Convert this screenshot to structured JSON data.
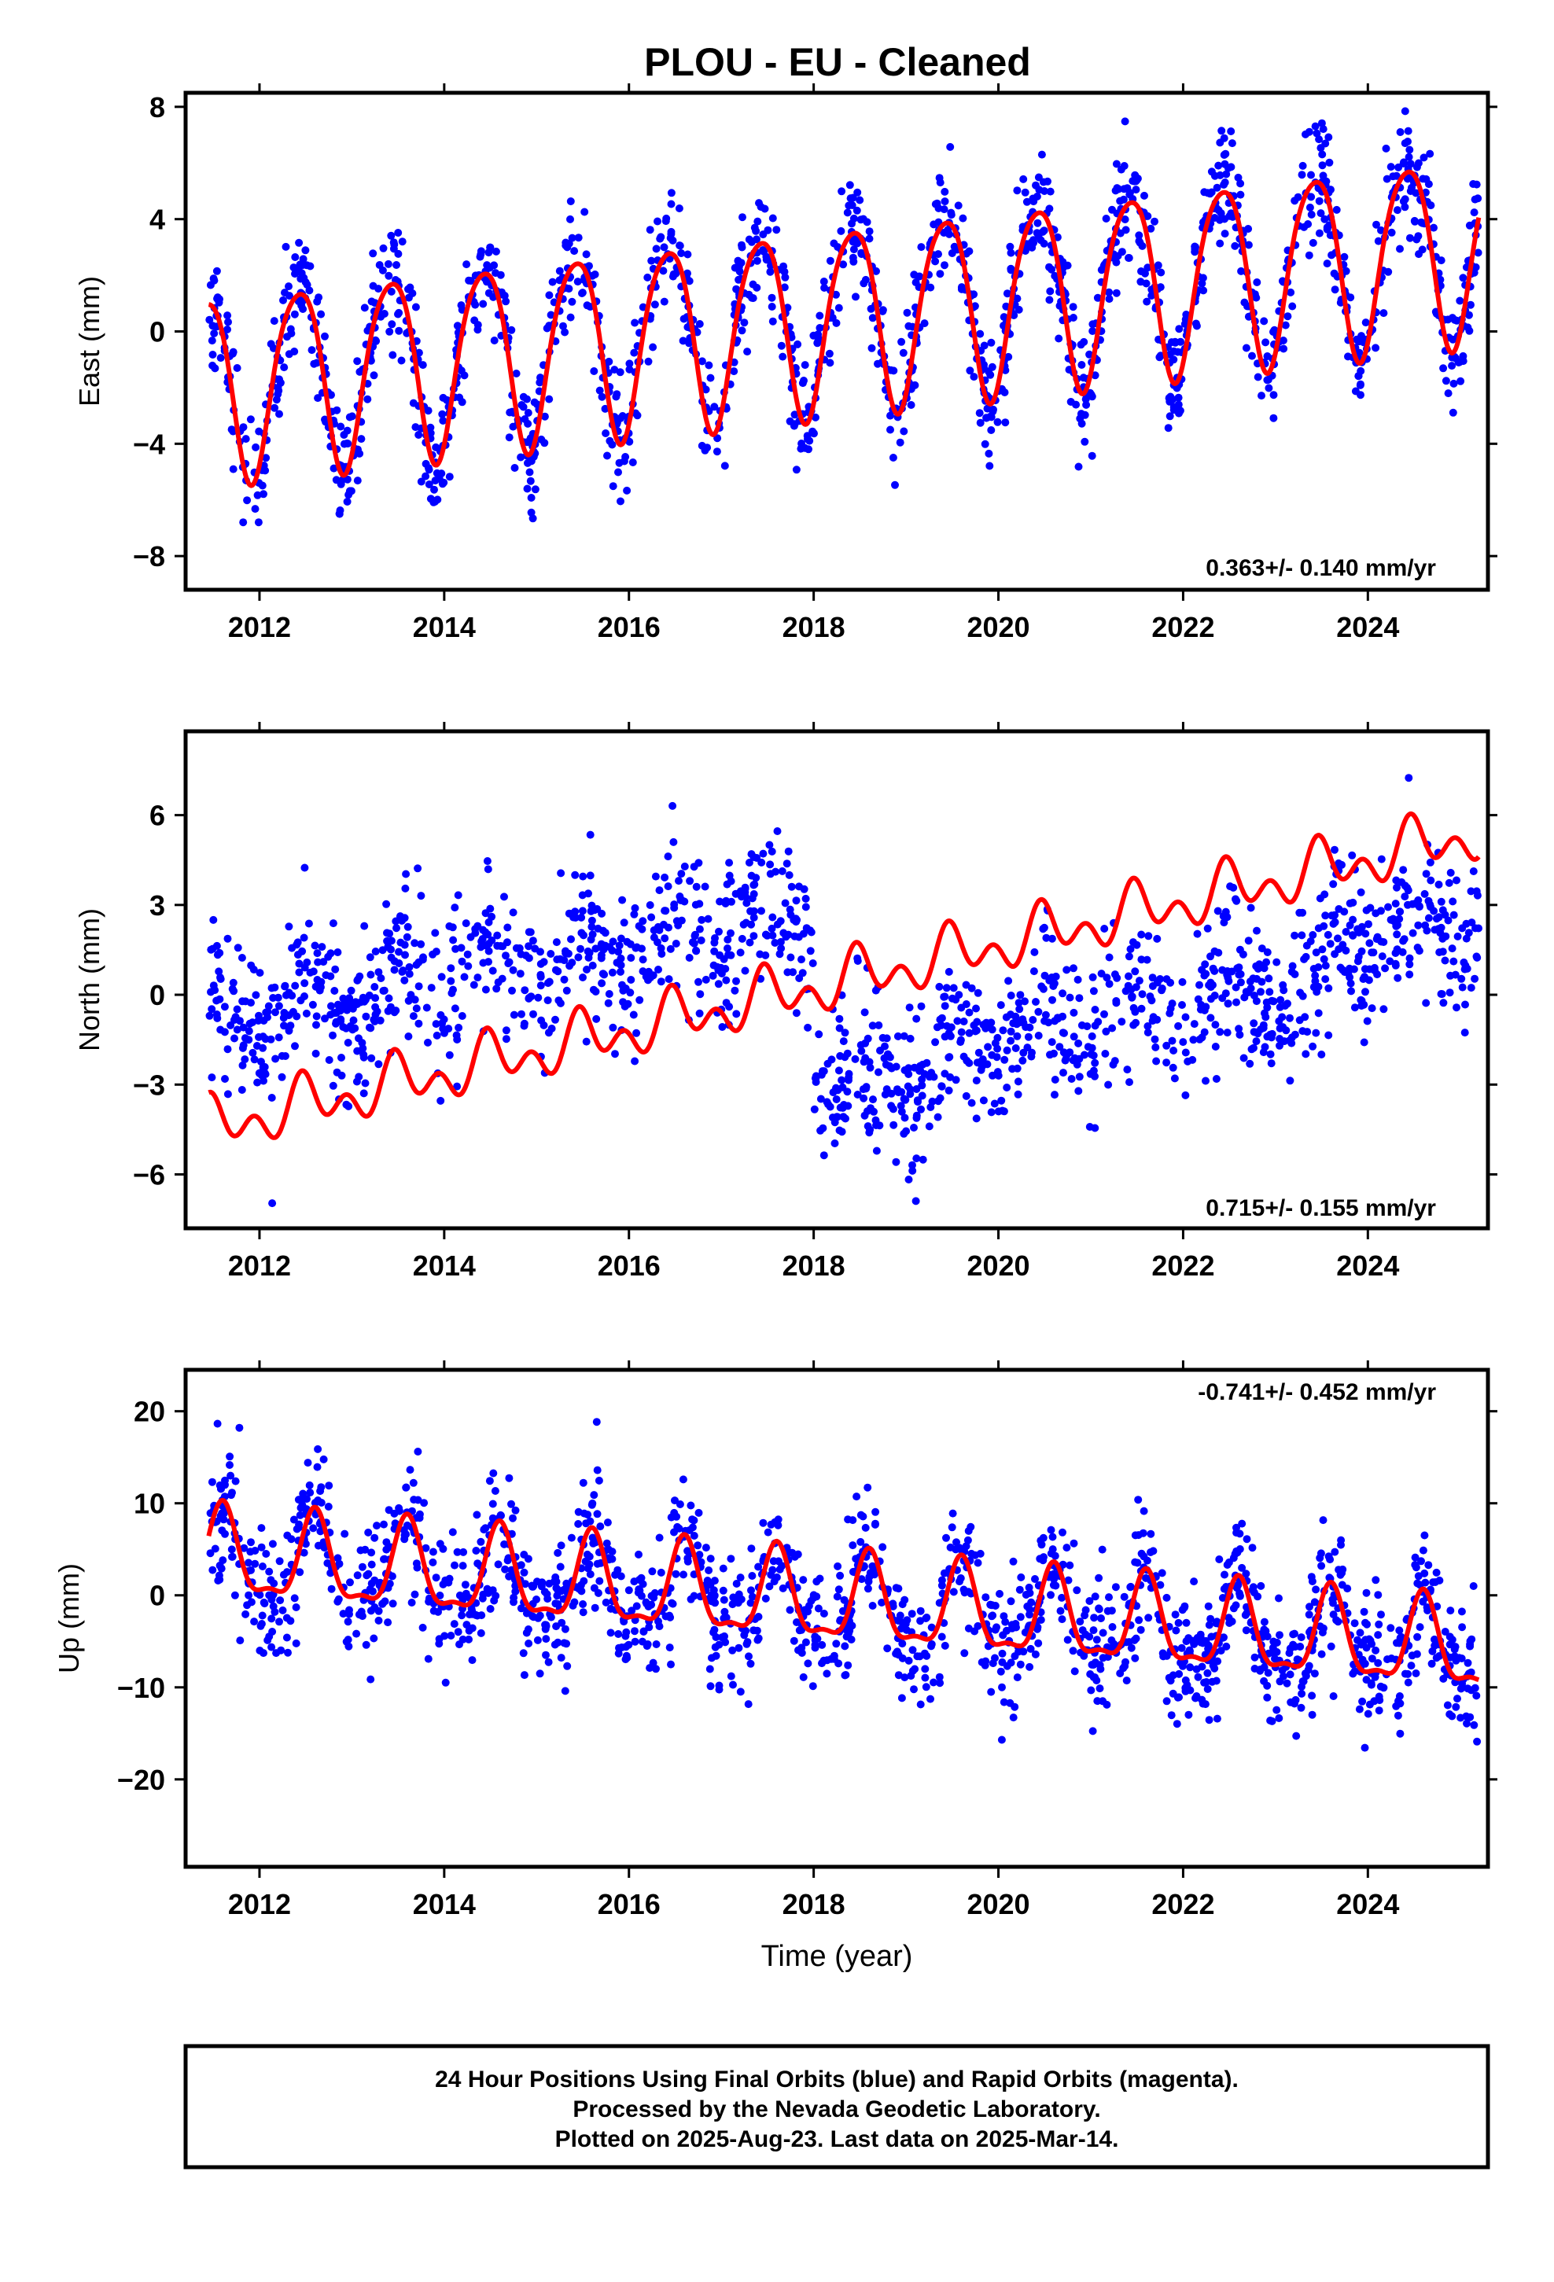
{
  "title": "PLOU  - EU - Cleaned",
  "footer_lines": [
    "24 Hour Positions Using Final Orbits (blue) and Rapid Orbits (magenta).",
    "Processed by the Nevada Geodetic Laboratory.",
    "Plotted on 2025-Aug-23. Last data on 2025-Mar-14."
  ],
  "colors": {
    "data_points": "#0000ff",
    "model_fit": "#ff0000",
    "frame": "#000000"
  },
  "chart_data": [
    {
      "type": "scatter",
      "ylabel": "East (mm)",
      "xlabel": "",
      "rate_label": "0.363+/- 0.140 mm/yr",
      "rate_position": "bottom-right",
      "xlim": [
        2011.2,
        2025.3
      ],
      "ylim": [
        -9.2,
        8.5
      ],
      "x_ticks": [
        2012,
        2014,
        2016,
        2018,
        2020,
        2022,
        2024
      ],
      "y_ticks": [
        -8,
        -4,
        0,
        4,
        8
      ],
      "y_tick_labels": [
        "−8",
        "−4",
        "0",
        "4",
        "8"
      ],
      "data_start": 2011.45,
      "data_end": 2025.2,
      "model": {
        "trend_rate_mm_per_yr": 0.363,
        "offset_mm_at_2011_5": -1.9,
        "annual_amplitude_mm": 3.3,
        "annual_peak_fraction_of_year": 0.42,
        "semiannual_amplitude_mm": 0.45,
        "semiannual_peak_fraction_of_year": 0.15
      },
      "scatter_noise_mm": 1.1,
      "points_per_year": 120
    },
    {
      "type": "scatter",
      "ylabel": "North (mm)",
      "xlabel": "",
      "rate_label": "0.715+/- 0.155 mm/yr",
      "rate_position": "bottom-right",
      "xlim": [
        2011.2,
        2025.3
      ],
      "ylim": [
        -7.8,
        8.8
      ],
      "x_ticks": [
        2012,
        2014,
        2016,
        2018,
        2020,
        2022,
        2024
      ],
      "y_ticks": [
        -6,
        -3,
        0,
        3,
        6
      ],
      "y_tick_labels": [
        "−6",
        "−3",
        "0",
        "3",
        "6"
      ],
      "data_start": 2011.45,
      "data_end": 2025.2,
      "model": {
        "trend_rate_mm_per_yr": 0.715,
        "offset_mm_at_2011_5": -4.4,
        "annual_amplitude_mm": 0.6,
        "annual_peak_fraction_of_year": 0.5,
        "semiannual_amplitude_mm": 0.6,
        "semiannual_peak_fraction_of_year": 0.45
      },
      "data_segments": [
        {
          "start": 2011.45,
          "end": 2012.5,
          "center_mm": -1.0,
          "trend": 0.5
        },
        {
          "start": 2012.5,
          "end": 2018.0,
          "center_mm": -0.2,
          "trend": 0.5
        },
        {
          "start": 2018.0,
          "end": 2019.4,
          "center_mm": -3.0,
          "trend": 0.3
        },
        {
          "start": 2019.4,
          "end": 2023.6,
          "center_mm": -1.8,
          "trend": 0.55
        },
        {
          "start": 2023.6,
          "end": 2025.2,
          "center_mm": 2.2,
          "trend": 0.0
        }
      ],
      "scatter_noise_mm": 1.3,
      "points_per_year": 110
    },
    {
      "type": "scatter",
      "ylabel": "Up (mm)",
      "xlabel": "Time (year)",
      "rate_label": "-0.741+/- 0.452 mm/yr",
      "rate_position": "top-right",
      "xlim": [
        2011.2,
        2025.3
      ],
      "ylim": [
        -29.5,
        24.5
      ],
      "x_ticks": [
        2012,
        2014,
        2016,
        2018,
        2020,
        2022,
        2024
      ],
      "y_ticks": [
        -20,
        -10,
        0,
        10,
        20
      ],
      "y_tick_labels": [
        "−20",
        "−10",
        "0",
        "10",
        "20"
      ],
      "data_start": 2011.45,
      "data_end": 2025.2,
      "model": {
        "trend_rate_mm_per_yr": -0.741,
        "offset_mm_at_2011_5": 4.2,
        "annual_amplitude_mm": 4.6,
        "annual_peak_fraction_of_year": 0.6,
        "semiannual_amplitude_mm": 1.6,
        "semiannual_peak_fraction_of_year": 0.1
      },
      "scatter_noise_mm": 3.6,
      "points_per_year": 120
    }
  ]
}
